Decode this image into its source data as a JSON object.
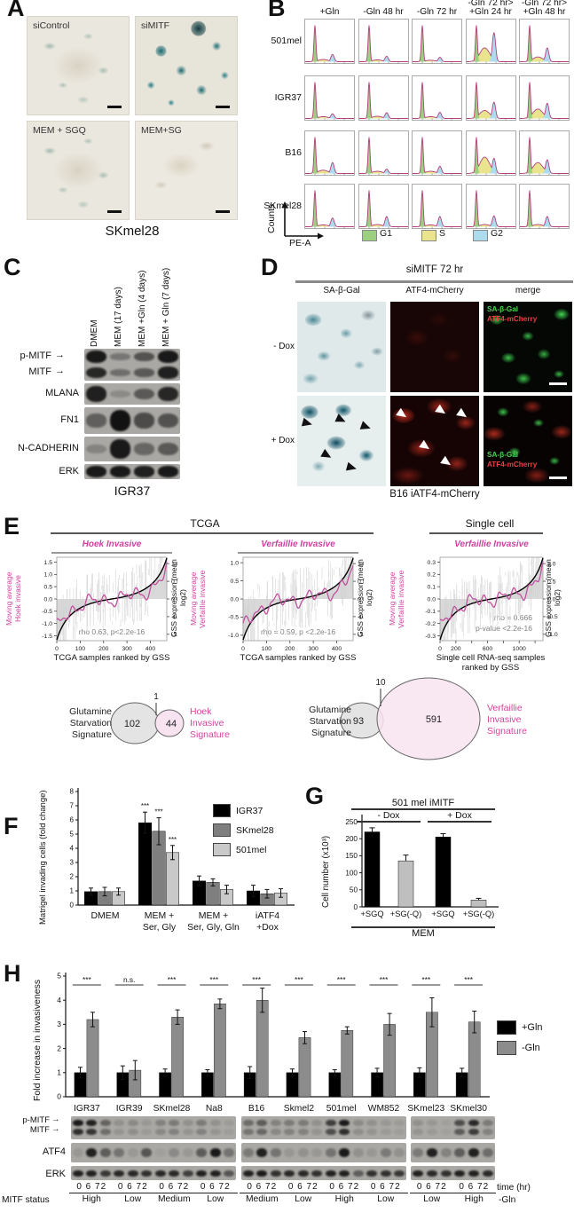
{
  "panels": {
    "a": {
      "label": "A",
      "caption": "SKmel28",
      "images": [
        {
          "label": "siControl",
          "stain": "low"
        },
        {
          "label": "siMITF",
          "stain": "high"
        },
        {
          "label": "MEM + SGQ",
          "stain": "low"
        },
        {
          "label": "MEM+SG",
          "stain": "none"
        }
      ]
    },
    "b": {
      "label": "B",
      "y_axis": "Counts",
      "x_axis": "PE-A"
    },
    "c": {
      "label": "C",
      "arrow": "→",
      "caption": "IGR37",
      "lanes": [
        "DMEM",
        "MEM (17 days)",
        "MEM +Gln (4 days)",
        "MEM + Gln (7 days)"
      ],
      "blots": [
        {
          "labels": [
            "p-MITF",
            "MITF"
          ],
          "rows": [
            [
              0.95,
              0.3,
              0.55,
              0.95
            ],
            [
              0.85,
              0.35,
              0.5,
              0.9
            ]
          ]
        },
        {
          "labels": [
            "MLANA"
          ],
          "rows": [
            [
              0.9,
              0.15,
              0.5,
              0.85
            ]
          ]
        },
        {
          "labels": [
            "FN1"
          ],
          "rows": [
            [
              0.45,
              1.0,
              0.6,
              0.55
            ]
          ]
        },
        {
          "labels": [
            "N-CADHERIN"
          ],
          "rows": [
            [
              0.2,
              0.95,
              0.4,
              0.5
            ]
          ]
        },
        {
          "labels": [
            "ERK"
          ],
          "rows": [
            [
              0.95,
              0.95,
              0.9,
              0.95
            ]
          ]
        }
      ]
    },
    "d": {
      "label": "D",
      "title": "siMITF 72 hr",
      "col_headers": [
        "SA-β-Gal",
        "ATF4-mCherry",
        "merge"
      ],
      "row_labels": [
        "- Dox",
        "+ Dox"
      ],
      "merge_legend": [
        "SA-β-Gal",
        "ATF4-mCherry"
      ],
      "caption": "B16 iATF4-mCherry"
    },
    "e": {
      "label": "E",
      "venns": [
        {
          "left_label": "Glutamine\nStarvation\nSignature",
          "left_count": "102",
          "overlap_count": "1",
          "right_count": "44",
          "right_label": "Hoek\nInvasive\nSignature"
        },
        {
          "left_label": "Glutamine\nStarvation\nSignature",
          "left_count": "93",
          "overlap_count": "10",
          "right_count": "591",
          "right_label": "Verfaillie\nInvasive\nSignature"
        }
      ]
    },
    "f": {
      "label": "F"
    },
    "g": {
      "label": "G"
    },
    "h": {
      "label": "H",
      "blots": {
        "row_labels": [
          "p-MITF",
          "MITF",
          "ATF4",
          "ERK"
        ],
        "status_label": "MITF status",
        "time_label": "time (hr)",
        "time_ticks": "0 6 72",
        "condition": "-Gln",
        "blocks": [
          {
            "cell_lines": [
              "IGR37",
              "IGR39",
              "SKmel28",
              "Na8"
            ],
            "status": [
              "High",
              "Low",
              "Medium",
              "Low"
            ],
            "mitf": [
              [
                0.95,
                0.9,
                0.45
              ],
              [
                0.15,
                0.2,
                0.1
              ],
              [
                0.25,
                0.3,
                0.15
              ],
              [
                0.3,
                0.15,
                0.08
              ]
            ],
            "atf4": [
              [
                0.1,
                0.9,
                0.5
              ],
              [
                0.35,
                0.1,
                0.55
              ],
              [
                0.05,
                0.2,
                0.1
              ],
              [
                0.5,
                0.95,
                0.35
              ]
            ],
            "erk": [
              [
                0.9,
                0.9,
                0.75
              ],
              [
                0.85,
                0.85,
                0.8
              ],
              [
                0.85,
                0.85,
                0.7
              ],
              [
                0.9,
                0.9,
                0.55
              ]
            ]
          },
          {
            "cell_lines": [
              "B16",
              "Skmel2",
              "501mel",
              "WM852"
            ],
            "status": [
              "Medium",
              "Low",
              "High",
              "Low"
            ],
            "mitf": [
              [
                0.4,
                0.5,
                0.25
              ],
              [
                0.3,
                0.3,
                0.15
              ],
              [
                0.7,
                0.95,
                0.2
              ],
              [
                0.15,
                0.1,
                0.08
              ]
            ],
            "atf4": [
              [
                0.3,
                0.9,
                0.35
              ],
              [
                0.1,
                0.15,
                0.1
              ],
              [
                0.35,
                0.95,
                0.15
              ],
              [
                0.1,
                0.3,
                0.15
              ]
            ],
            "erk": [
              [
                0.9,
                0.95,
                0.8
              ],
              [
                0.85,
                0.85,
                0.8
              ],
              [
                0.9,
                0.9,
                0.5
              ],
              [
                0.8,
                0.8,
                0.75
              ]
            ]
          },
          {
            "cell_lines": [
              "SKmel23",
              "SKmel30"
            ],
            "status": [
              "Low",
              "High"
            ],
            "mitf": [
              [
                0.15,
                0.1,
                0.05
              ],
              [
                0.6,
                0.85,
                0.3
              ]
            ],
            "atf4": [
              [
                0.3,
                0.9,
                0.25
              ],
              [
                0.5,
                0.9,
                0.4
              ]
            ],
            "erk": [
              [
                0.9,
                0.85,
                0.8
              ],
              [
                0.9,
                0.9,
                0.85
              ]
            ]
          }
        ]
      }
    }
  },
  "chart_data": [
    {
      "id": "b_cellcycle",
      "type": "area",
      "rows": [
        "501mel",
        "IGR37",
        "B16",
        "SKmel28"
      ],
      "col_headers": [
        "+Gln",
        "-Gln 48 hr",
        "-Gln 72 hr",
        "-Gln 72 hr>\n+Gln 24 hr",
        "-Gln 72 hr>\n+Gln 48 hr"
      ],
      "legend": [
        {
          "label": "G1",
          "color": "#9ccf7f"
        },
        {
          "label": "S",
          "color": "#eae48e"
        },
        {
          "label": "G2",
          "color": "#abdbec"
        }
      ],
      "cells": [
        [
          {
            "s": 0.06,
            "g2": 0.2
          },
          {
            "s": 0.05,
            "g2": 0.15
          },
          {
            "s": 0.04,
            "g2": 0.12
          },
          {
            "s": 0.38,
            "g2": 0.8
          },
          {
            "s": 0.13,
            "g2": 0.38
          }
        ],
        [
          {
            "s": 0.05,
            "g2": 0.13
          },
          {
            "s": 0.06,
            "g2": 0.16
          },
          {
            "s": 0.05,
            "g2": 0.17
          },
          {
            "s": 0.22,
            "g2": 0.45
          },
          {
            "s": 0.26,
            "g2": 0.42
          }
        ],
        [
          {
            "s": 0.09,
            "g2": 0.3
          },
          {
            "s": 0.06,
            "g2": 0.12
          },
          {
            "s": 0.06,
            "g2": 0.2
          },
          {
            "s": 0.45,
            "g2": 0.42
          },
          {
            "s": 0.3,
            "g2": 0.38
          }
        ],
        [
          {
            "s": 0.05,
            "g2": 0.24
          },
          {
            "s": 0.06,
            "g2": 0.28
          },
          {
            "s": 0.05,
            "g2": 0.28
          },
          {
            "s": 0.06,
            "g2": 0.3
          },
          {
            "s": 0.06,
            "g2": 0.28
          }
        ]
      ]
    },
    {
      "id": "e_tcga_hoek",
      "type": "line",
      "header": "TCGA",
      "title": "Hoek Invasive",
      "ylabel_left": "Moving average\nHoek invasive",
      "ylabel_right": "GSS expression (mean log2)",
      "xlabel": "TCGA samples ranked by GSS",
      "annotation": [
        "rho 0.63, p<2.2e-16"
      ],
      "rho": 0.63,
      "xticks": [
        "0",
        "100",
        "200",
        "300",
        "400"
      ],
      "xmax": 470,
      "yticks_left": [
        "1.5",
        "1.0",
        "0.5",
        "0.0",
        "-0.5",
        "-1.0",
        "-1.5"
      ],
      "ylim_left": [
        -1.7,
        1.7
      ],
      "yticks_right": [
        "1.0",
        "0.5",
        "0.0",
        "-0.5",
        "-1.0"
      ],
      "ylim_right": [
        -1.18,
        1.18
      ],
      "series": [
        {
          "name": "Moving average Hoek invasive",
          "color": "#c2509e"
        },
        {
          "name": "GSS expression (mean log2)",
          "color": "#000000"
        }
      ]
    },
    {
      "id": "e_tcga_verfaillie",
      "type": "line",
      "title": "Verfaillie Invasive",
      "ylabel_left": "Moving average\nVerfaillie invasive",
      "ylabel_right": "GSS expression (mean log2)",
      "xlabel": "TCGA samples ranked by GSS",
      "annotation": [
        "rho = 0.59, p <2.2e-16"
      ],
      "rho": 0.59,
      "xticks": [
        "0",
        "100",
        "200",
        "300",
        "400"
      ],
      "xmax": 470,
      "yticks_left": [
        "1.0",
        "0.5",
        "0.0",
        "-0.5",
        "-1.0"
      ],
      "ylim_left": [
        -1.15,
        1.15
      ],
      "yticks_right": [
        "1.0",
        "0.5",
        "0.0",
        "-0.5",
        "-1.0"
      ],
      "ylim_right": [
        -1.18,
        1.18
      ],
      "series": [
        {
          "name": "Moving average Verfaillie invasive",
          "color": "#c2509e"
        },
        {
          "name": "GSS expression (mean log2)",
          "color": "#000000"
        }
      ]
    },
    {
      "id": "e_single_cell",
      "type": "line",
      "header": "Single cell",
      "title": "Verfaillie Invasive",
      "ylabel_left": "Moving average\nVerfaillie invasive",
      "ylabel_right": "GSS expression (mean log2)",
      "xlabel": "Single cell RNA-seq samples\nranked by GSS",
      "annotation": [
        "rho = 0.666",
        "p-value <2.2e-16"
      ],
      "rho": 0.666,
      "xticks": [
        "0",
        "200",
        "600",
        "1000"
      ],
      "xticks_minor": [
        400,
        800,
        1200
      ],
      "xmax": 1300,
      "yticks_left": [
        "0.3",
        "0.2",
        "0.1",
        "0.0",
        "-0.1",
        "-0.2",
        "-0.3"
      ],
      "ylim_left": [
        -0.34,
        0.34
      ],
      "yticks_right": [
        "1.0",
        "0.5",
        "0.0",
        "-0.5",
        "-1.0"
      ],
      "ylim_right": [
        -1.18,
        1.18
      ],
      "series": [
        {
          "name": "Moving average Verfaillie invasive",
          "color": "#c2509e"
        },
        {
          "name": "GSS expression (mean log2)",
          "color": "#000000"
        }
      ]
    },
    {
      "id": "f_invasion",
      "type": "bar",
      "ylabel": "Matrigel invading cells (fold change)",
      "ylim": [
        0,
        8
      ],
      "categories": [
        "DMEM",
        "MEM +\nSer, Gly",
        "MEM +\nSer, Gly, Gln",
        "iATF4\n+Dox"
      ],
      "series": [
        {
          "name": "IGR37",
          "color": "#000000",
          "values": [
            0.95,
            5.8,
            1.7,
            1.0
          ],
          "errors": [
            0.25,
            0.75,
            0.35,
            0.4
          ]
        },
        {
          "name": "SKmel28",
          "color": "#7f7f7f",
          "values": [
            0.95,
            5.2,
            1.6,
            0.8
          ],
          "errors": [
            0.3,
            0.95,
            0.25,
            0.3
          ]
        },
        {
          "name": "501mel",
          "color": "#c9c9c9",
          "values": [
            0.95,
            3.7,
            1.1,
            0.85
          ],
          "errors": [
            0.25,
            0.5,
            0.3,
            0.3
          ]
        }
      ],
      "significance": [
        {
          "group": 1,
          "series": 0,
          "label": "***"
        },
        {
          "group": 1,
          "series": 1,
          "label": "***"
        },
        {
          "group": 1,
          "series": 2,
          "label": "***"
        }
      ]
    },
    {
      "id": "g_cellnumber",
      "type": "bar",
      "title": "501 mel iMITF",
      "group_headers": [
        "- Dox",
        "+ Dox"
      ],
      "ylabel": "Cell number (x10³)",
      "xlabel": "MEM",
      "ylim": [
        0,
        250
      ],
      "yticks": [
        0,
        50,
        100,
        150,
        200,
        250
      ],
      "categories": [
        "+SGQ",
        "+SG(-Q)",
        "+SGQ",
        "+SG(-Q)"
      ],
      "values": [
        220,
        135,
        205,
        20
      ],
      "errors": [
        12,
        17,
        10,
        5
      ],
      "colors": [
        "#000000",
        "#bfbfbf",
        "#000000",
        "#bfbfbf"
      ]
    },
    {
      "id": "h_invasiveness",
      "type": "bar",
      "ylabel": "Fold increase in invasiveness",
      "ylim": [
        0,
        5
      ],
      "categories": [
        "IGR37",
        "IGR39",
        "SKmel28",
        "Na8",
        "B16",
        "Skmel2",
        "501mel",
        "WM852",
        "SKmel23",
        "SKmel30"
      ],
      "series": [
        {
          "name": "+Gln",
          "color": "#000000",
          "values": [
            1,
            1,
            1,
            1,
            1,
            1,
            1,
            1,
            1,
            1
          ],
          "errors": [
            0.22,
            0.28,
            0.15,
            0.12,
            0.25,
            0.15,
            0.12,
            0.18,
            0.2,
            0.18
          ]
        },
        {
          "name": "-Gln",
          "color": "#8c8c8c",
          "values": [
            3.2,
            1.1,
            3.3,
            3.85,
            4.0,
            2.45,
            2.75,
            3.0,
            3.5,
            3.1
          ],
          "errors": [
            0.3,
            0.4,
            0.3,
            0.2,
            0.5,
            0.25,
            0.15,
            0.45,
            0.6,
            0.45
          ]
        }
      ],
      "significance": [
        "***",
        "n.s.",
        "***",
        "***",
        "***",
        "***",
        "***",
        "***",
        "***",
        "***"
      ]
    }
  ]
}
